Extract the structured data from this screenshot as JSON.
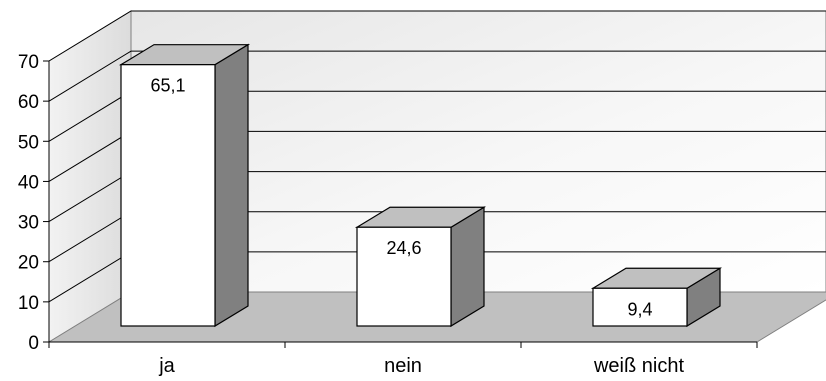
{
  "chart_data": {
    "type": "bar",
    "categories": [
      "ja",
      "nein",
      "weiß nicht"
    ],
    "values": [
      65.1,
      24.6,
      9.4
    ],
    "value_labels": [
      "65,1",
      "24,6",
      "9,4"
    ],
    "yticks": [
      "0",
      "10",
      "20",
      "30",
      "40",
      "50",
      "60",
      "70"
    ],
    "ylim": [
      0,
      70
    ],
    "grid": true,
    "legend": "none",
    "colors": {
      "bar_front": "#ffffff",
      "bar_top": "#c0c0c0",
      "bar_side": "#808080",
      "floor": "#c0c0c0",
      "back_wall_light": "#ffffff",
      "back_wall_dark": "#c8c8c8",
      "grid": "#000000"
    }
  }
}
